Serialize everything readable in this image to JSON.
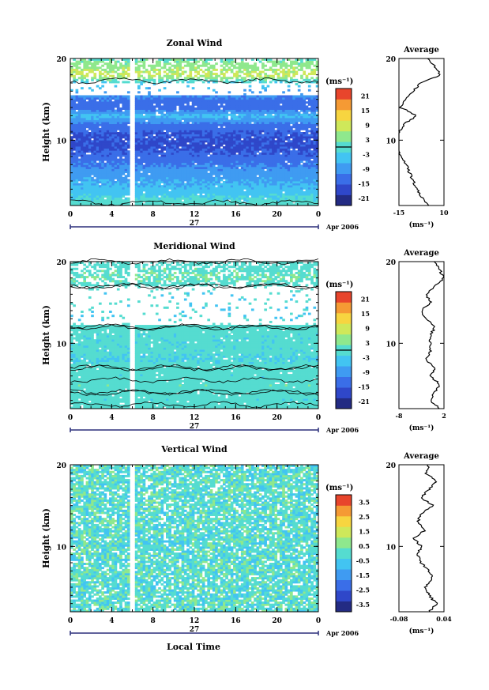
{
  "figure": {
    "x_label": "Local Time",
    "date_text": "Apr 2006",
    "day_label": "27",
    "height_label": "Height (km)",
    "average_title": "Average",
    "unit_label": "(ms⁻¹)",
    "colors": {
      "scale": [
        "#232b83",
        "#2f47c9",
        "#3a6ee8",
        "#3f9bf2",
        "#42c4f2",
        "#55dcd0",
        "#8fe88d",
        "#cfe85a",
        "#f7d540",
        "#f59a34",
        "#e8452c"
      ],
      "contour": "#000000",
      "background": "#ffffff"
    }
  },
  "chart_data": [
    {
      "type": "heatmap",
      "title": "Zonal Wind",
      "xlabel": "",
      "ylabel": "Height (km)",
      "x_ticks": [
        "0",
        "4",
        "8",
        "12",
        "16",
        "20",
        "0"
      ],
      "x_range_hours": [
        0,
        24
      ],
      "y_ticks": [
        "20",
        "10"
      ],
      "y_range_km": [
        2,
        20
      ],
      "colorbar": {
        "unit": "(ms⁻¹)",
        "ticks": [
          "21",
          "15",
          "9",
          "3",
          "-3",
          "-9",
          "-15",
          "-21"
        ],
        "range": [
          -24,
          24
        ],
        "contour_level": 0
      },
      "description_profile": {
        "heights_km": [
          2,
          3,
          4,
          5,
          6,
          7,
          8,
          9,
          10,
          11,
          12,
          13,
          14,
          15,
          16,
          17,
          18,
          19,
          20
        ],
        "values_ms": [
          1,
          -2,
          -5,
          -7,
          -9,
          -11,
          -14,
          -16,
          -16,
          -15,
          -12,
          -5,
          -14,
          -12,
          -7,
          -3,
          8,
          5,
          1
        ]
      },
      "gaps": {
        "time_hours": 6,
        "missing_height_km": [
          15.5,
          17.0
        ]
      },
      "average": {
        "title": "Average",
        "xlabel": "(ms⁻¹)",
        "x_ticks": [
          "-15",
          "10"
        ],
        "x_range": [
          -15,
          10
        ],
        "y_ticks": [
          "20",
          "10"
        ]
      }
    },
    {
      "type": "heatmap",
      "title": "Meridional Wind",
      "xlabel": "",
      "ylabel": "Height (km)",
      "x_ticks": [
        "0",
        "4",
        "8",
        "12",
        "16",
        "20",
        "0"
      ],
      "x_range_hours": [
        0,
        24
      ],
      "y_ticks": [
        "20",
        "10"
      ],
      "y_range_km": [
        2,
        20
      ],
      "colorbar": {
        "unit": "(ms⁻¹)",
        "ticks": [
          "21",
          "15",
          "9",
          "3",
          "-3",
          "-9",
          "-15",
          "-21"
        ],
        "range": [
          -24,
          24
        ],
        "contour_level": 0
      },
      "description_profile": {
        "heights_km": [
          2,
          3,
          4,
          5,
          6,
          7,
          8,
          9,
          10,
          11,
          12,
          13,
          14,
          15,
          16,
          17,
          18,
          19,
          20
        ],
        "values_ms": [
          1,
          -1,
          0,
          1,
          -1,
          0,
          -2,
          -1,
          -1,
          -1,
          0,
          -2,
          -3,
          -1,
          -2,
          0,
          2,
          1,
          0
        ]
      },
      "gaps": {
        "time_hours": 6,
        "missing_height_km": [
          12.2,
          17.0
        ]
      },
      "average": {
        "title": "Average",
        "xlabel": "(ms⁻¹)",
        "x_ticks": [
          "-8",
          "2"
        ],
        "x_range": [
          -8,
          2
        ],
        "y_ticks": [
          "20",
          "10"
        ]
      }
    },
    {
      "type": "heatmap",
      "title": "Vertical Wind",
      "xlabel": "Local Time",
      "ylabel": "Height (km)",
      "x_ticks": [
        "0",
        "4",
        "8",
        "12",
        "16",
        "20",
        "0"
      ],
      "x_range_hours": [
        0,
        24
      ],
      "y_ticks": [
        "20",
        "10"
      ],
      "y_range_km": [
        2,
        20
      ],
      "colorbar": {
        "unit": "(ms⁻¹)",
        "ticks": [
          "3.5",
          "2.5",
          "1.5",
          "0.5",
          "-0.5",
          "-1.5",
          "-2.5",
          "-3.5"
        ],
        "range": [
          -4,
          4
        ],
        "contour_level": null
      },
      "description_profile": {
        "heights_km": [
          2,
          3,
          4,
          5,
          6,
          7,
          8,
          9,
          10,
          11,
          12,
          13,
          14,
          15,
          16,
          17,
          18,
          19,
          20
        ],
        "values_ms": [
          0.0,
          0.02,
          0.0,
          -0.01,
          0.01,
          0.0,
          -0.02,
          -0.03,
          -0.02,
          -0.04,
          -0.01,
          -0.03,
          -0.02,
          0.01,
          -0.02,
          0.0,
          0.02,
          -0.01,
          0.0
        ]
      },
      "gaps": {
        "time_hours": 6,
        "missing_height_km": null
      },
      "average": {
        "title": "Average",
        "xlabel": "(ms⁻¹)",
        "x_ticks": [
          "-0.08",
          "0.04"
        ],
        "x_range": [
          -0.08,
          0.04
        ],
        "y_ticks": [
          "20",
          "10"
        ]
      }
    }
  ]
}
